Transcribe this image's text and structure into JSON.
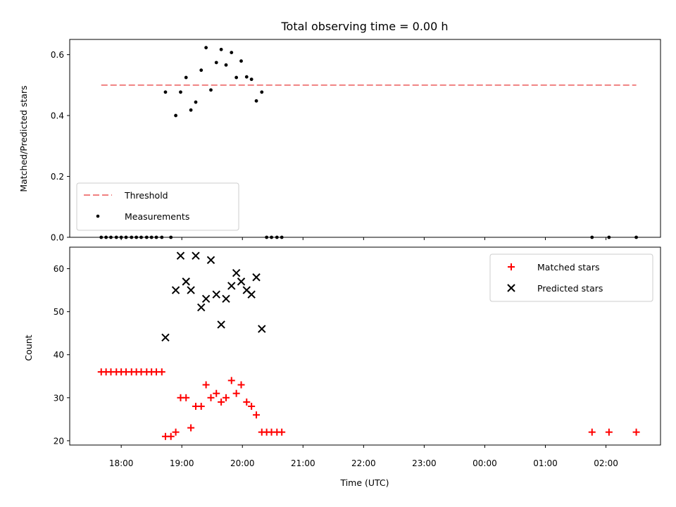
{
  "figure": {
    "title": "Total observing time = 0.00 h"
  },
  "colors": {
    "threshold": "#f08080",
    "measurements": "#000000",
    "matched": "#ff0000",
    "predicted": "#000000"
  },
  "chart_data": [
    {
      "type": "scatter",
      "panel": "top",
      "ylabel": "Matched/Predicted stars",
      "ylim": [
        0,
        0.65
      ],
      "yticks": [
        0.0,
        0.2,
        0.4,
        0.6
      ],
      "ytick_labels": [
        "0.0",
        "0.2",
        "0.4",
        "0.6"
      ],
      "xlim_hours": [
        17.15,
        26.9
      ],
      "xticks_hours": [
        18,
        19,
        20,
        21,
        22,
        23,
        24,
        25,
        26
      ],
      "legend_position": "lower-left",
      "threshold": {
        "name": "Threshold",
        "y": 0.5,
        "x_range": [
          17.67,
          26.5
        ],
        "style": "dashed"
      },
      "series": [
        {
          "name": "Measurements",
          "marker": "dot",
          "x": [
            17.67,
            17.75,
            17.83,
            17.92,
            18.0,
            18.08,
            18.17,
            18.25,
            18.33,
            18.42,
            18.5,
            18.58,
            18.67,
            18.73,
            18.82,
            18.9,
            18.98,
            19.07,
            19.15,
            19.23,
            19.32,
            19.4,
            19.48,
            19.57,
            19.65,
            19.73,
            19.82,
            19.9,
            19.98,
            20.07,
            20.15,
            20.23,
            20.32,
            20.4,
            20.48,
            20.57,
            20.65,
            25.77,
            26.05,
            26.5
          ],
          "y": [
            0,
            0,
            0,
            0,
            0,
            0,
            0,
            0,
            0,
            0,
            0,
            0,
            0,
            0.477,
            0,
            0.4,
            0.477,
            0.525,
            0.418,
            0.444,
            0.549,
            0.623,
            0.484,
            0.574,
            0.617,
            0.566,
            0.607,
            0.525,
            0.579,
            0.527,
            0.519,
            0.448,
            0.477,
            0,
            0,
            0,
            0,
            0,
            0,
            0
          ]
        }
      ]
    },
    {
      "type": "scatter",
      "panel": "bottom",
      "xlabel": "Time (UTC)",
      "ylabel": "Count",
      "ylim": [
        19,
        65
      ],
      "yticks": [
        20,
        30,
        40,
        50,
        60
      ],
      "ytick_labels": [
        "20",
        "30",
        "40",
        "50",
        "60"
      ],
      "xlim_hours": [
        17.15,
        26.9
      ],
      "xticks_hours": [
        18,
        19,
        20,
        21,
        22,
        23,
        24,
        25,
        26
      ],
      "xtick_labels": [
        "18:00",
        "19:00",
        "20:00",
        "21:00",
        "22:00",
        "23:00",
        "00:00",
        "01:00",
        "02:00"
      ],
      "legend_position": "upper-right",
      "series": [
        {
          "name": "Matched stars",
          "marker": "plus",
          "x": [
            17.67,
            17.75,
            17.83,
            17.92,
            18.0,
            18.08,
            18.17,
            18.25,
            18.33,
            18.42,
            18.5,
            18.58,
            18.67,
            18.73,
            18.82,
            18.9,
            18.98,
            19.07,
            19.15,
            19.23,
            19.32,
            19.4,
            19.48,
            19.57,
            19.65,
            19.73,
            19.82,
            19.9,
            19.98,
            20.07,
            20.15,
            20.23,
            20.32,
            20.4,
            20.48,
            20.57,
            20.65,
            25.77,
            26.05,
            26.5
          ],
          "y": [
            36,
            36,
            36,
            36,
            36,
            36,
            36,
            36,
            36,
            36,
            36,
            36,
            36,
            21,
            21,
            22,
            30,
            30,
            23,
            28,
            28,
            33,
            30,
            31,
            29,
            30,
            34,
            31,
            33,
            29,
            28,
            26,
            22,
            22,
            22,
            22,
            22,
            22,
            22,
            22
          ]
        },
        {
          "name": "Predicted stars",
          "marker": "x",
          "x": [
            18.73,
            18.9,
            18.98,
            19.07,
            19.15,
            19.23,
            19.32,
            19.4,
            19.48,
            19.57,
            19.65,
            19.73,
            19.82,
            19.9,
            19.98,
            20.07,
            20.15,
            20.23,
            20.32
          ],
          "y": [
            44,
            55,
            63,
            57,
            55,
            63,
            51,
            53,
            62,
            54,
            47,
            53,
            56,
            59,
            57,
            55,
            54,
            58,
            46
          ]
        }
      ]
    }
  ]
}
